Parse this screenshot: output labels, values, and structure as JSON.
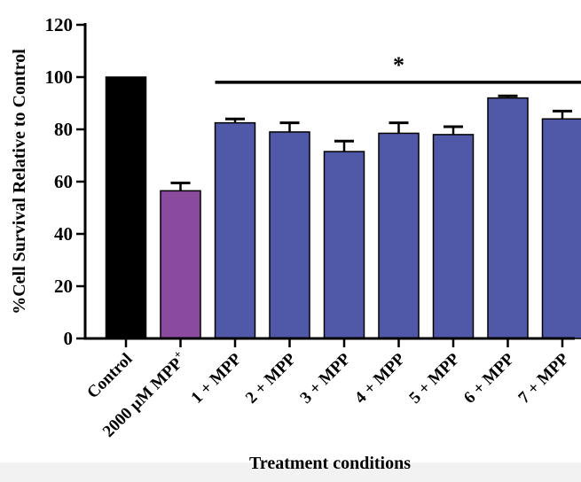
{
  "chart_data": {
    "type": "bar",
    "title": "",
    "xlabel": "Treatment conditions",
    "ylabel": "%Cell Survival Relative to Control",
    "ylim": [
      0,
      120
    ],
    "yticks": [
      "0",
      "20",
      "40",
      "60",
      "80",
      "100",
      "120"
    ],
    "categories": [
      {
        "main": "Control",
        "sup": ""
      },
      {
        "main": "2000 μM MPP",
        "sup": "+"
      },
      {
        "main": "1 + MPP",
        "sup": ""
      },
      {
        "main": "2 + MPP",
        "sup": ""
      },
      {
        "main": "3 + MPP",
        "sup": ""
      },
      {
        "main": "4 + MPP",
        "sup": ""
      },
      {
        "main": "5 + MPP",
        "sup": ""
      },
      {
        "main": "6 + MPP",
        "sup": ""
      },
      {
        "main": "7 + MPP",
        "sup": ""
      }
    ],
    "values": [
      100,
      56.5,
      82.5,
      79,
      71.5,
      78.5,
      78,
      92,
      84
    ],
    "errors": [
      0,
      3,
      1.5,
      3.5,
      4,
      4,
      3,
      0.8,
      3
    ],
    "colors": [
      "#000000",
      "#8a4a9e",
      "#5058a8",
      "#5058a8",
      "#5058a8",
      "#5058a8",
      "#5058a8",
      "#5058a8",
      "#5058a8"
    ],
    "significance": {
      "label": "*",
      "from_category": 2,
      "to_category": 8,
      "level": 98
    },
    "grid": false,
    "legend": "none"
  }
}
